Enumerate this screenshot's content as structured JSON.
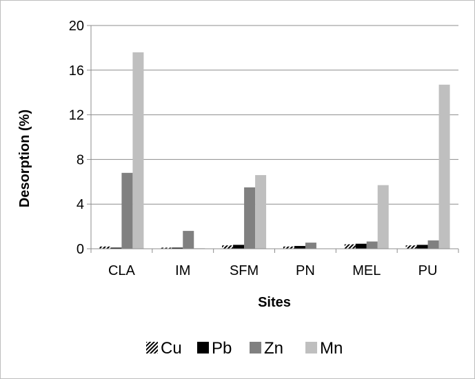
{
  "chart_data": {
    "type": "bar",
    "xlabel": "Sites",
    "ylabel": "Desorption (%)",
    "ylim": [
      0,
      20
    ],
    "yticks": [
      0,
      4,
      8,
      12,
      16,
      20
    ],
    "grid": true,
    "legend_position": "bottom",
    "categories": [
      "CLA",
      "IM",
      "SFM",
      "PN",
      "MEL",
      "PU"
    ],
    "series": [
      {
        "name": "Cu",
        "values": [
          0.2,
          0.1,
          0.3,
          0.2,
          0.4,
          0.3
        ],
        "color": "#000000",
        "pattern": "diagonal-stripes"
      },
      {
        "name": "Pb",
        "values": [
          0.1,
          0.1,
          0.35,
          0.25,
          0.45,
          0.35
        ],
        "color": "#000000"
      },
      {
        "name": "Zn",
        "values": [
          6.8,
          1.6,
          5.5,
          0.55,
          0.65,
          0.75
        ],
        "color": "#808080"
      },
      {
        "name": "Mn",
        "values": [
          17.6,
          0.05,
          6.6,
          0.0,
          5.7,
          14.7
        ],
        "color": "#bfbfbf"
      }
    ]
  }
}
